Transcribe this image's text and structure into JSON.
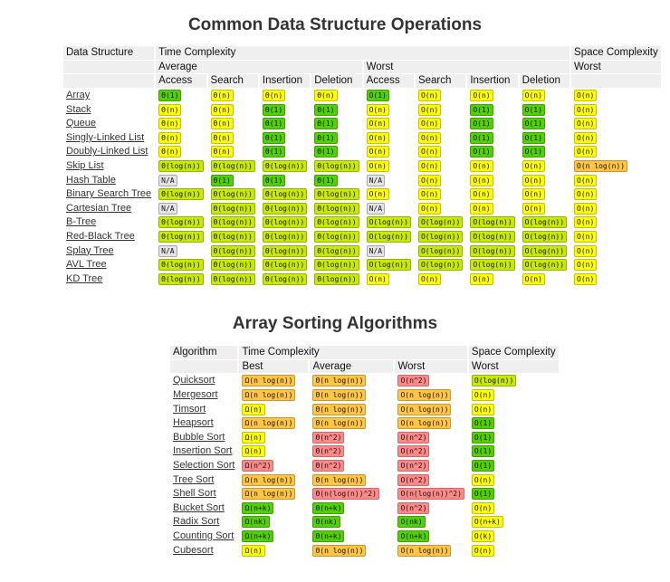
{
  "colors": {
    "green": "#53d000",
    "yellow-green": "#c8ea00",
    "yellow": "#ffff00",
    "orange": "#ffc543",
    "red": "#ff8989",
    "gray": "#e4e4e4",
    "header_bg": "#efefef"
  },
  "ops_table": {
    "title": "Common Data Structure Operations",
    "header_row1": {
      "name": "Data Structure",
      "time": "Time Complexity",
      "space": "Space Complexity"
    },
    "header_row2": {
      "avg": "Average",
      "worst": "Worst",
      "space_worst": "Worst"
    },
    "header_row3": [
      "Access",
      "Search",
      "Insertion",
      "Deletion",
      "Access",
      "Search",
      "Insertion",
      "Deletion"
    ],
    "rows": [
      {
        "name": "Array",
        "cells": [
          [
            "Θ(1)",
            "green"
          ],
          [
            "Θ(n)",
            "yellow"
          ],
          [
            "Θ(n)",
            "yellow"
          ],
          [
            "Θ(n)",
            "yellow"
          ],
          [
            "O(1)",
            "green"
          ],
          [
            "O(n)",
            "yellow"
          ],
          [
            "O(n)",
            "yellow"
          ],
          [
            "O(n)",
            "yellow"
          ],
          [
            "O(n)",
            "yellow"
          ]
        ]
      },
      {
        "name": "Stack",
        "cells": [
          [
            "Θ(n)",
            "yellow"
          ],
          [
            "Θ(n)",
            "yellow"
          ],
          [
            "Θ(1)",
            "green"
          ],
          [
            "Θ(1)",
            "green"
          ],
          [
            "O(n)",
            "yellow"
          ],
          [
            "O(n)",
            "yellow"
          ],
          [
            "O(1)",
            "green"
          ],
          [
            "O(1)",
            "green"
          ],
          [
            "O(n)",
            "yellow"
          ]
        ]
      },
      {
        "name": "Queue",
        "cells": [
          [
            "Θ(n)",
            "yellow"
          ],
          [
            "Θ(n)",
            "yellow"
          ],
          [
            "Θ(1)",
            "green"
          ],
          [
            "Θ(1)",
            "green"
          ],
          [
            "O(n)",
            "yellow"
          ],
          [
            "O(n)",
            "yellow"
          ],
          [
            "O(1)",
            "green"
          ],
          [
            "O(1)",
            "green"
          ],
          [
            "O(n)",
            "yellow"
          ]
        ]
      },
      {
        "name": "Singly-Linked List",
        "cells": [
          [
            "Θ(n)",
            "yellow"
          ],
          [
            "Θ(n)",
            "yellow"
          ],
          [
            "Θ(1)",
            "green"
          ],
          [
            "Θ(1)",
            "green"
          ],
          [
            "O(n)",
            "yellow"
          ],
          [
            "O(n)",
            "yellow"
          ],
          [
            "O(1)",
            "green"
          ],
          [
            "O(1)",
            "green"
          ],
          [
            "O(n)",
            "yellow"
          ]
        ]
      },
      {
        "name": "Doubly-Linked List",
        "cells": [
          [
            "Θ(n)",
            "yellow"
          ],
          [
            "Θ(n)",
            "yellow"
          ],
          [
            "Θ(1)",
            "green"
          ],
          [
            "Θ(1)",
            "green"
          ],
          [
            "O(n)",
            "yellow"
          ],
          [
            "O(n)",
            "yellow"
          ],
          [
            "O(1)",
            "green"
          ],
          [
            "O(1)",
            "green"
          ],
          [
            "O(n)",
            "yellow"
          ]
        ]
      },
      {
        "name": "Skip List",
        "cells": [
          [
            "Θ(log(n))",
            "yellow-green"
          ],
          [
            "Θ(log(n))",
            "yellow-green"
          ],
          [
            "Θ(log(n))",
            "yellow-green"
          ],
          [
            "Θ(log(n))",
            "yellow-green"
          ],
          [
            "O(n)",
            "yellow"
          ],
          [
            "O(n)",
            "yellow"
          ],
          [
            "O(n)",
            "yellow"
          ],
          [
            "O(n)",
            "yellow"
          ],
          [
            "O(n log(n))",
            "orange"
          ]
        ]
      },
      {
        "name": "Hash Table",
        "cells": [
          [
            "N/A",
            "gray"
          ],
          [
            "Θ(1)",
            "green"
          ],
          [
            "Θ(1)",
            "green"
          ],
          [
            "Θ(1)",
            "green"
          ],
          [
            "N/A",
            "gray"
          ],
          [
            "O(n)",
            "yellow"
          ],
          [
            "O(n)",
            "yellow"
          ],
          [
            "O(n)",
            "yellow"
          ],
          [
            "O(n)",
            "yellow"
          ]
        ]
      },
      {
        "name": "Binary Search Tree",
        "cells": [
          [
            "Θ(log(n))",
            "yellow-green"
          ],
          [
            "Θ(log(n))",
            "yellow-green"
          ],
          [
            "Θ(log(n))",
            "yellow-green"
          ],
          [
            "Θ(log(n))",
            "yellow-green"
          ],
          [
            "O(n)",
            "yellow"
          ],
          [
            "O(n)",
            "yellow"
          ],
          [
            "O(n)",
            "yellow"
          ],
          [
            "O(n)",
            "yellow"
          ],
          [
            "O(n)",
            "yellow"
          ]
        ]
      },
      {
        "name": "Cartesian Tree",
        "cells": [
          [
            "N/A",
            "gray"
          ],
          [
            "Θ(log(n))",
            "yellow-green"
          ],
          [
            "Θ(log(n))",
            "yellow-green"
          ],
          [
            "Θ(log(n))",
            "yellow-green"
          ],
          [
            "N/A",
            "gray"
          ],
          [
            "O(n)",
            "yellow"
          ],
          [
            "O(n)",
            "yellow"
          ],
          [
            "O(n)",
            "yellow"
          ],
          [
            "O(n)",
            "yellow"
          ]
        ]
      },
      {
        "name": "B-Tree",
        "cells": [
          [
            "Θ(log(n))",
            "yellow-green"
          ],
          [
            "Θ(log(n))",
            "yellow-green"
          ],
          [
            "Θ(log(n))",
            "yellow-green"
          ],
          [
            "Θ(log(n))",
            "yellow-green"
          ],
          [
            "O(log(n))",
            "yellow-green"
          ],
          [
            "O(log(n))",
            "yellow-green"
          ],
          [
            "O(log(n))",
            "yellow-green"
          ],
          [
            "O(log(n))",
            "yellow-green"
          ],
          [
            "O(n)",
            "yellow"
          ]
        ]
      },
      {
        "name": "Red-Black Tree",
        "cells": [
          [
            "Θ(log(n))",
            "yellow-green"
          ],
          [
            "Θ(log(n))",
            "yellow-green"
          ],
          [
            "Θ(log(n))",
            "yellow-green"
          ],
          [
            "Θ(log(n))",
            "yellow-green"
          ],
          [
            "O(log(n))",
            "yellow-green"
          ],
          [
            "O(log(n))",
            "yellow-green"
          ],
          [
            "O(log(n))",
            "yellow-green"
          ],
          [
            "O(log(n))",
            "yellow-green"
          ],
          [
            "O(n)",
            "yellow"
          ]
        ]
      },
      {
        "name": "Splay Tree",
        "cells": [
          [
            "N/A",
            "gray"
          ],
          [
            "Θ(log(n))",
            "yellow-green"
          ],
          [
            "Θ(log(n))",
            "yellow-green"
          ],
          [
            "Θ(log(n))",
            "yellow-green"
          ],
          [
            "N/A",
            "gray"
          ],
          [
            "O(log(n))",
            "yellow-green"
          ],
          [
            "O(log(n))",
            "yellow-green"
          ],
          [
            "O(log(n))",
            "yellow-green"
          ],
          [
            "O(n)",
            "yellow"
          ]
        ]
      },
      {
        "name": "AVL Tree",
        "cells": [
          [
            "Θ(log(n))",
            "yellow-green"
          ],
          [
            "Θ(log(n))",
            "yellow-green"
          ],
          [
            "Θ(log(n))",
            "yellow-green"
          ],
          [
            "Θ(log(n))",
            "yellow-green"
          ],
          [
            "O(log(n))",
            "yellow-green"
          ],
          [
            "O(log(n))",
            "yellow-green"
          ],
          [
            "O(log(n))",
            "yellow-green"
          ],
          [
            "O(log(n))",
            "yellow-green"
          ],
          [
            "O(n)",
            "yellow"
          ]
        ]
      },
      {
        "name": "KD Tree",
        "cells": [
          [
            "Θ(log(n))",
            "yellow-green"
          ],
          [
            "Θ(log(n))",
            "yellow-green"
          ],
          [
            "Θ(log(n))",
            "yellow-green"
          ],
          [
            "Θ(log(n))",
            "yellow-green"
          ],
          [
            "O(n)",
            "yellow"
          ],
          [
            "O(n)",
            "yellow"
          ],
          [
            "O(n)",
            "yellow"
          ],
          [
            "O(n)",
            "yellow"
          ],
          [
            "O(n)",
            "yellow"
          ]
        ]
      }
    ]
  },
  "sort_table": {
    "title": "Array Sorting Algorithms",
    "header_row1": {
      "name": "Algorithm",
      "time": "Time Complexity",
      "space": "Space Complexity"
    },
    "header_row2": [
      "Best",
      "Average",
      "Worst",
      "Worst"
    ],
    "rows": [
      {
        "name": "Quicksort",
        "cells": [
          [
            "Ω(n log(n))",
            "orange"
          ],
          [
            "Θ(n log(n))",
            "orange"
          ],
          [
            "O(n^2)",
            "red"
          ],
          [
            "O(log(n))",
            "yellow-green"
          ]
        ]
      },
      {
        "name": "Mergesort",
        "cells": [
          [
            "Ω(n log(n))",
            "orange"
          ],
          [
            "Θ(n log(n))",
            "orange"
          ],
          [
            "O(n log(n))",
            "orange"
          ],
          [
            "O(n)",
            "yellow"
          ]
        ]
      },
      {
        "name": "Timsort",
        "cells": [
          [
            "Ω(n)",
            "yellow"
          ],
          [
            "Θ(n log(n))",
            "orange"
          ],
          [
            "O(n log(n))",
            "orange"
          ],
          [
            "O(n)",
            "yellow"
          ]
        ]
      },
      {
        "name": "Heapsort",
        "cells": [
          [
            "Ω(n log(n))",
            "orange"
          ],
          [
            "Θ(n log(n))",
            "orange"
          ],
          [
            "O(n log(n))",
            "orange"
          ],
          [
            "O(1)",
            "green"
          ]
        ]
      },
      {
        "name": "Bubble Sort",
        "cells": [
          [
            "Ω(n)",
            "yellow"
          ],
          [
            "Θ(n^2)",
            "red"
          ],
          [
            "O(n^2)",
            "red"
          ],
          [
            "O(1)",
            "green"
          ]
        ]
      },
      {
        "name": "Insertion Sort",
        "cells": [
          [
            "Ω(n)",
            "yellow"
          ],
          [
            "Θ(n^2)",
            "red"
          ],
          [
            "O(n^2)",
            "red"
          ],
          [
            "O(1)",
            "green"
          ]
        ]
      },
      {
        "name": "Selection Sort",
        "cells": [
          [
            "Ω(n^2)",
            "red"
          ],
          [
            "Θ(n^2)",
            "red"
          ],
          [
            "O(n^2)",
            "red"
          ],
          [
            "O(1)",
            "green"
          ]
        ]
      },
      {
        "name": "Tree Sort",
        "cells": [
          [
            "Ω(n log(n))",
            "orange"
          ],
          [
            "Θ(n log(n))",
            "orange"
          ],
          [
            "O(n^2)",
            "red"
          ],
          [
            "O(n)",
            "yellow"
          ]
        ]
      },
      {
        "name": "Shell Sort",
        "cells": [
          [
            "Ω(n log(n))",
            "orange"
          ],
          [
            "Θ(n(log(n))^2)",
            "red"
          ],
          [
            "O(n(log(n))^2)",
            "red"
          ],
          [
            "O(1)",
            "green"
          ]
        ]
      },
      {
        "name": "Bucket Sort",
        "cells": [
          [
            "Ω(n+k)",
            "green"
          ],
          [
            "Θ(n+k)",
            "green"
          ],
          [
            "O(n^2)",
            "red"
          ],
          [
            "O(n)",
            "yellow"
          ]
        ]
      },
      {
        "name": "Radix Sort",
        "cells": [
          [
            "Ω(nk)",
            "green"
          ],
          [
            "Θ(nk)",
            "green"
          ],
          [
            "O(nk)",
            "green"
          ],
          [
            "O(n+k)",
            "yellow"
          ]
        ]
      },
      {
        "name": "Counting Sort",
        "cells": [
          [
            "Ω(n+k)",
            "green"
          ],
          [
            "Θ(n+k)",
            "green"
          ],
          [
            "O(n+k)",
            "green"
          ],
          [
            "O(k)",
            "yellow"
          ]
        ]
      },
      {
        "name": "Cubesort",
        "cells": [
          [
            "Ω(n)",
            "yellow"
          ],
          [
            "Θ(n log(n))",
            "orange"
          ],
          [
            "O(n log(n))",
            "orange"
          ],
          [
            "O(n)",
            "yellow"
          ]
        ]
      }
    ]
  }
}
